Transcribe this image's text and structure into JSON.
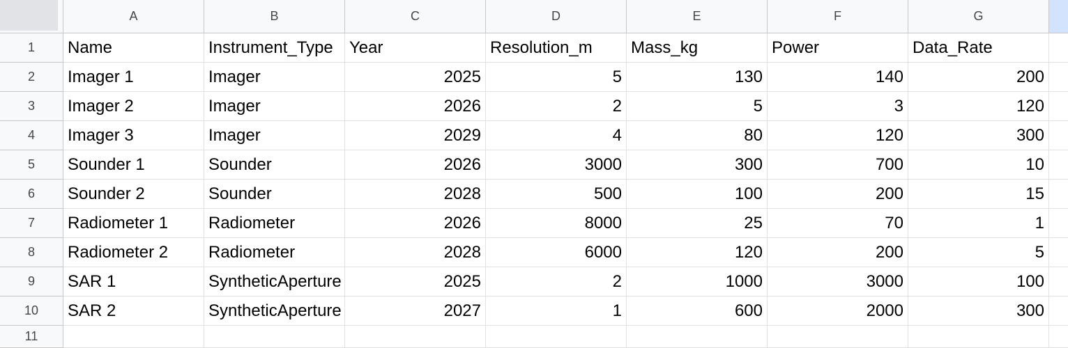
{
  "columns": [
    "A",
    "B",
    "C",
    "D",
    "E",
    "F",
    "G"
  ],
  "rows": [
    {
      "num": "1",
      "cells": [
        "Name",
        "Instrument_Type",
        "Year",
        "Resolution_m",
        "Mass_kg",
        "Power",
        "Data_Rate"
      ]
    },
    {
      "num": "2",
      "cells": [
        "Imager 1",
        "Imager",
        "2025",
        "5",
        "130",
        "140",
        "200"
      ]
    },
    {
      "num": "3",
      "cells": [
        "Imager 2",
        "Imager",
        "2026",
        "2",
        "5",
        "3",
        "120"
      ]
    },
    {
      "num": "4",
      "cells": [
        "Imager 3",
        "Imager",
        "2029",
        "4",
        "80",
        "120",
        "300"
      ]
    },
    {
      "num": "5",
      "cells": [
        "Sounder 1",
        "Sounder",
        "2026",
        "3000",
        "300",
        "700",
        "10"
      ]
    },
    {
      "num": "6",
      "cells": [
        "Sounder 2",
        "Sounder",
        "2028",
        "500",
        "100",
        "200",
        "15"
      ]
    },
    {
      "num": "7",
      "cells": [
        "Radiometer 1",
        "Radiometer",
        "2026",
        "8000",
        "25",
        "70",
        "1"
      ]
    },
    {
      "num": "8",
      "cells": [
        "Radiometer 2",
        "Radiometer",
        "2028",
        "6000",
        "120",
        "200",
        "5"
      ]
    },
    {
      "num": "9",
      "cells": [
        "SAR 1",
        "SyntheticAperture",
        "2025",
        "2",
        "1000",
        "3000",
        "100"
      ]
    },
    {
      "num": "10",
      "cells": [
        "SAR 2",
        "SyntheticAperture",
        "2027",
        "1",
        "600",
        "2000",
        "300"
      ]
    },
    {
      "num": "11",
      "cells": [
        "",
        "",
        "",
        "",
        "",
        "",
        ""
      ]
    }
  ],
  "colors": {
    "header_bg": "#f8f9fa",
    "header_text": "#444746",
    "gridline": "#e2e2e2",
    "header_border": "#c7c7c7",
    "selected_column_stub": "#d3e3fd"
  }
}
